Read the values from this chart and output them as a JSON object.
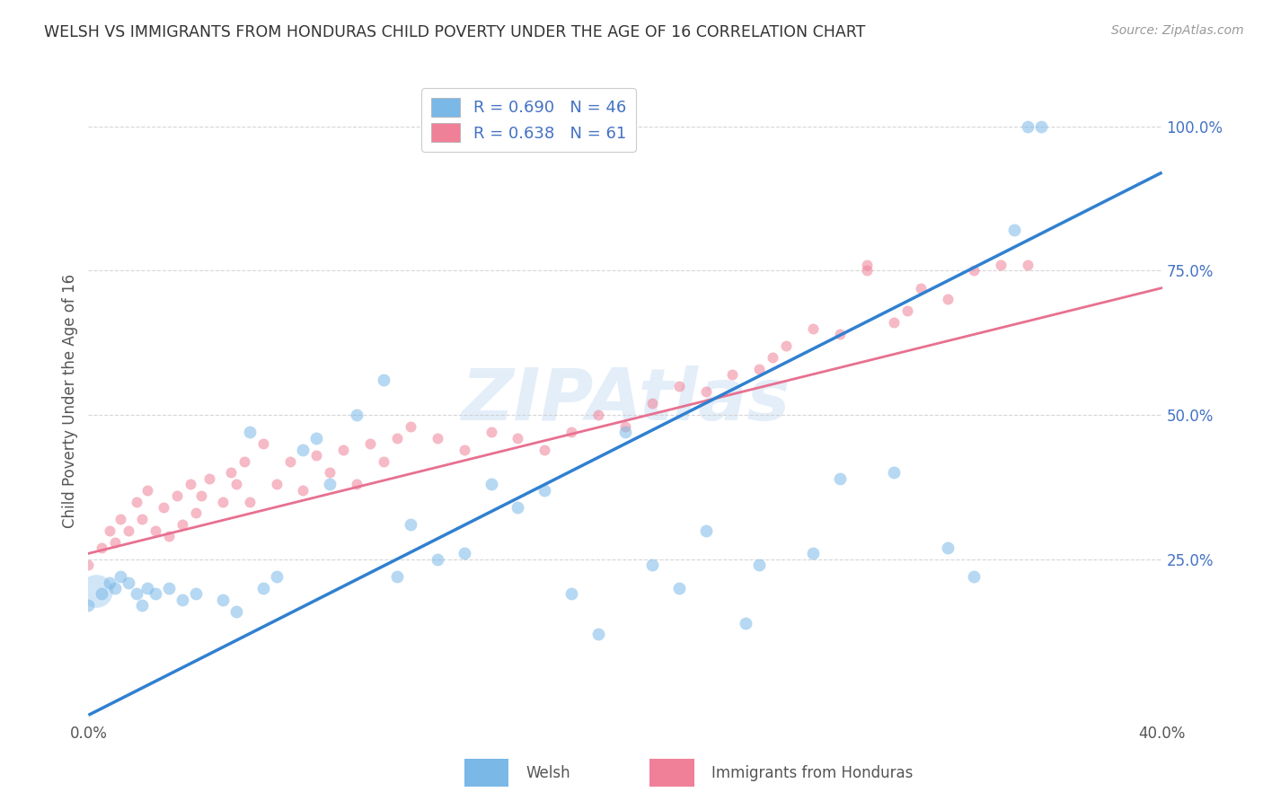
{
  "title": "WELSH VS IMMIGRANTS FROM HONDURAS CHILD POVERTY UNDER THE AGE OF 16 CORRELATION CHART",
  "source": "Source: ZipAtlas.com",
  "ylabel": "Child Poverty Under the Age of 16",
  "xlabel_welsh": "Welsh",
  "xlabel_honduras": "Immigrants from Honduras",
  "xmin": 0.0,
  "xmax": 0.4,
  "ymin": -0.03,
  "ymax": 1.08,
  "yticks": [
    0.0,
    0.25,
    0.5,
    0.75,
    1.0
  ],
  "ytick_labels": [
    "",
    "25.0%",
    "50.0%",
    "75.0%",
    "100.0%"
  ],
  "xticks": [
    0.0,
    0.1,
    0.2,
    0.3,
    0.4
  ],
  "xtick_labels": [
    "0.0%",
    "",
    "",
    "",
    "40.0%"
  ],
  "welsh_color": "#7ab8e8",
  "honduras_color": "#f08098",
  "welsh_line_color": "#3080d0",
  "honduras_line_color": "#e87090",
  "legend_welsh_R": "0.690",
  "legend_welsh_N": "46",
  "legend_honduras_R": "0.638",
  "legend_honduras_N": "61",
  "watermark": "ZIPAtlas",
  "welsh_line_x": [
    0.0,
    0.4
  ],
  "welsh_line_y": [
    -0.02,
    0.92
  ],
  "honduras_line_x": [
    0.0,
    0.4
  ],
  "honduras_line_y": [
    0.26,
    0.72
  ],
  "grid_color": "#cccccc",
  "background_color": "#ffffff",
  "scatter_size_welsh": 100,
  "scatter_size_honduras": 75,
  "scatter_alpha": 0.55,
  "welsh_pts_x": [
    0.0,
    0.005,
    0.008,
    0.01,
    0.012,
    0.015,
    0.018,
    0.02,
    0.022,
    0.025,
    0.03,
    0.035,
    0.04,
    0.05,
    0.055,
    0.06,
    0.065,
    0.07,
    0.08,
    0.085,
    0.09,
    0.1,
    0.11,
    0.115,
    0.12,
    0.13,
    0.14,
    0.15,
    0.16,
    0.17,
    0.18,
    0.19,
    0.2,
    0.21,
    0.22,
    0.23,
    0.245,
    0.25,
    0.27,
    0.28,
    0.3,
    0.32,
    0.33,
    0.345,
    0.35,
    0.355
  ],
  "welsh_pts_y": [
    0.17,
    0.19,
    0.21,
    0.2,
    0.22,
    0.21,
    0.19,
    0.17,
    0.2,
    0.19,
    0.2,
    0.18,
    0.19,
    0.18,
    0.16,
    0.47,
    0.2,
    0.22,
    0.44,
    0.46,
    0.38,
    0.5,
    0.56,
    0.22,
    0.31,
    0.25,
    0.26,
    0.38,
    0.34,
    0.37,
    0.19,
    0.12,
    0.47,
    0.24,
    0.2,
    0.3,
    0.14,
    0.24,
    0.26,
    0.39,
    0.4,
    0.27,
    0.22,
    0.82,
    1.0,
    1.0
  ],
  "honduras_pts_x": [
    0.0,
    0.005,
    0.008,
    0.01,
    0.012,
    0.015,
    0.018,
    0.02,
    0.022,
    0.025,
    0.028,
    0.03,
    0.033,
    0.035,
    0.038,
    0.04,
    0.042,
    0.045,
    0.05,
    0.053,
    0.055,
    0.058,
    0.06,
    0.065,
    0.07,
    0.075,
    0.08,
    0.085,
    0.09,
    0.095,
    0.1,
    0.105,
    0.11,
    0.115,
    0.12,
    0.13,
    0.14,
    0.15,
    0.16,
    0.17,
    0.18,
    0.19,
    0.2,
    0.21,
    0.22,
    0.23,
    0.24,
    0.25,
    0.255,
    0.26,
    0.27,
    0.28,
    0.29,
    0.29,
    0.3,
    0.305,
    0.31,
    0.32,
    0.33,
    0.34,
    0.35
  ],
  "honduras_pts_y": [
    0.24,
    0.27,
    0.3,
    0.28,
    0.32,
    0.3,
    0.35,
    0.32,
    0.37,
    0.3,
    0.34,
    0.29,
    0.36,
    0.31,
    0.38,
    0.33,
    0.36,
    0.39,
    0.35,
    0.4,
    0.38,
    0.42,
    0.35,
    0.45,
    0.38,
    0.42,
    0.37,
    0.43,
    0.4,
    0.44,
    0.38,
    0.45,
    0.42,
    0.46,
    0.48,
    0.46,
    0.44,
    0.47,
    0.46,
    0.44,
    0.47,
    0.5,
    0.48,
    0.52,
    0.55,
    0.54,
    0.57,
    0.58,
    0.6,
    0.62,
    0.65,
    0.64,
    0.75,
    0.76,
    0.66,
    0.68,
    0.72,
    0.7,
    0.75,
    0.76,
    0.76
  ]
}
